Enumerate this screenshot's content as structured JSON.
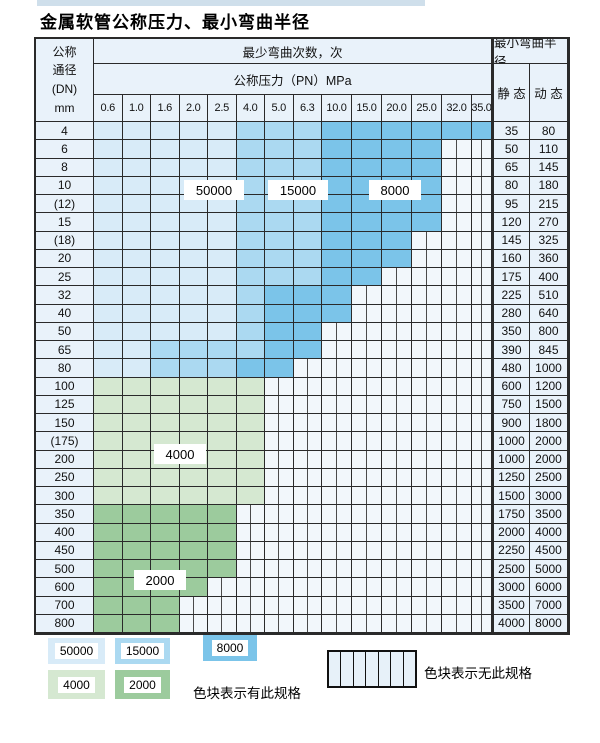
{
  "page": {
    "title": "金属软管公称压力、最小弯曲半径"
  },
  "table": {
    "header": {
      "dn_lines": [
        "公称",
        "通径",
        "(DN)",
        "mm"
      ],
      "cycles_label": "最少弯曲次数，次",
      "pressure_label": "公称压力（PN）MPa",
      "radius_label": "最小弯曲半径",
      "static_label": "静 态",
      "dynamic_label": "动 态",
      "pressure_values": [
        "0.6",
        "1.0",
        "1.6",
        "2.0",
        "2.5",
        "4.0",
        "5.0",
        "6.3",
        "10.0",
        "15.0",
        "20.0",
        "25.0",
        "32.0",
        "35.0"
      ]
    },
    "state_key": {
      "L": "50000",
      "M": "15000",
      "D": "8000",
      "G": "4000",
      "E": "2000",
      "H": "no-spec"
    },
    "rows": [
      {
        "dn": "4",
        "states": "LLLLLMMMDDDDDD",
        "static": "35",
        "dynamic": "80"
      },
      {
        "dn": "6",
        "states": "LLLLLMMMDDDDHH",
        "static": "50",
        "dynamic": "110"
      },
      {
        "dn": "8",
        "states": "LLLLLMMMDDDDHH",
        "static": "65",
        "dynamic": "145"
      },
      {
        "dn": "10",
        "states": "LLLLLMMMDDDDHH",
        "static": "80",
        "dynamic": "180"
      },
      {
        "dn": "(12)",
        "states": "LLLLLMMMDDDDHH",
        "static": "95",
        "dynamic": "215"
      },
      {
        "dn": "15",
        "states": "LLLLLMMMDDDDHH",
        "static": "120",
        "dynamic": "270"
      },
      {
        "dn": "(18)",
        "states": "LLLLLMMMDDDHHH",
        "static": "145",
        "dynamic": "325"
      },
      {
        "dn": "20",
        "states": "LLLLLMMMDDDHHH",
        "static": "160",
        "dynamic": "360"
      },
      {
        "dn": "25",
        "states": "LLLLLMMMDDHHHH",
        "static": "175",
        "dynamic": "400"
      },
      {
        "dn": "32",
        "states": "LLLLLMDDDHHHHH",
        "static": "225",
        "dynamic": "510"
      },
      {
        "dn": "40",
        "states": "LLLLLMDDDHHHHH",
        "static": "280",
        "dynamic": "640"
      },
      {
        "dn": "50",
        "states": "LLLLLMDDHHHHHH",
        "static": "350",
        "dynamic": "800"
      },
      {
        "dn": "65",
        "states": "LLMMMMDDHHHHHH",
        "static": "390",
        "dynamic": "845"
      },
      {
        "dn": "80",
        "states": "LLMMMDDHHHHHHH",
        "static": "480",
        "dynamic": "1000"
      },
      {
        "dn": "100",
        "states": "GGGGGGHHHHHHHH",
        "static": "600",
        "dynamic": "1200"
      },
      {
        "dn": "125",
        "states": "GGGGGGHHHHHHHH",
        "static": "750",
        "dynamic": "1500"
      },
      {
        "dn": "150",
        "states": "GGGGGGHHHHHHHH",
        "static": "900",
        "dynamic": "1800"
      },
      {
        "dn": "(175)",
        "states": "GGGGGGHHHHHHHH",
        "static": "1000",
        "dynamic": "2000"
      },
      {
        "dn": "200",
        "states": "GGGGGGHHHHHHHH",
        "static": "1000",
        "dynamic": "2000"
      },
      {
        "dn": "250",
        "states": "GGGGGGHHHHHHHH",
        "static": "1250",
        "dynamic": "2500"
      },
      {
        "dn": "300",
        "states": "GGGGGGHHHHHHHH",
        "static": "1500",
        "dynamic": "3000"
      },
      {
        "dn": "350",
        "states": "EEEEEHHHHHHHHH",
        "static": "1750",
        "dynamic": "3500"
      },
      {
        "dn": "400",
        "states": "EEEEEHHHHHHHHH",
        "static": "2000",
        "dynamic": "4000"
      },
      {
        "dn": "450",
        "states": "EEEEEHHHHHHHHH",
        "static": "2250",
        "dynamic": "4500"
      },
      {
        "dn": "500",
        "states": "EEEEEHHHHHHHHH",
        "static": "2500",
        "dynamic": "5000"
      },
      {
        "dn": "600",
        "states": "EEEEHHHHHHHHHH",
        "static": "3000",
        "dynamic": "6000"
      },
      {
        "dn": "700",
        "states": "EEEHHHHHHHHHHH",
        "static": "3500",
        "dynamic": "7000"
      },
      {
        "dn": "800",
        "states": "EEEHHHHHHHHHHH",
        "static": "4000",
        "dynamic": "8000"
      }
    ],
    "overlay_labels": [
      {
        "text": "50000"
      },
      {
        "text": "15000"
      },
      {
        "text": "8000"
      },
      {
        "text": "4000"
      },
      {
        "text": "2000"
      }
    ]
  },
  "legend": {
    "chips": [
      {
        "label": "50000",
        "state": "L"
      },
      {
        "label": "15000",
        "state": "M"
      },
      {
        "label": "8000",
        "state": "D"
      },
      {
        "label": "4000",
        "state": "G"
      },
      {
        "label": "2000",
        "state": "E"
      }
    ],
    "has_spec_text": "色块表示有此规格",
    "no_spec_text": "色块表示无此规格"
  },
  "colors": {
    "band_50000": "#D8EBF8",
    "band_15000": "#ABD9F1",
    "band_8000": "#7BC4E9",
    "band_4000": "#D5E8D1",
    "band_2000": "#9CCB9D",
    "hatch_bg": "#F2F7FB",
    "header_bg": "#E9F2FA",
    "border": "#2A2A2A",
    "top_strip": "#CFDFEB"
  }
}
